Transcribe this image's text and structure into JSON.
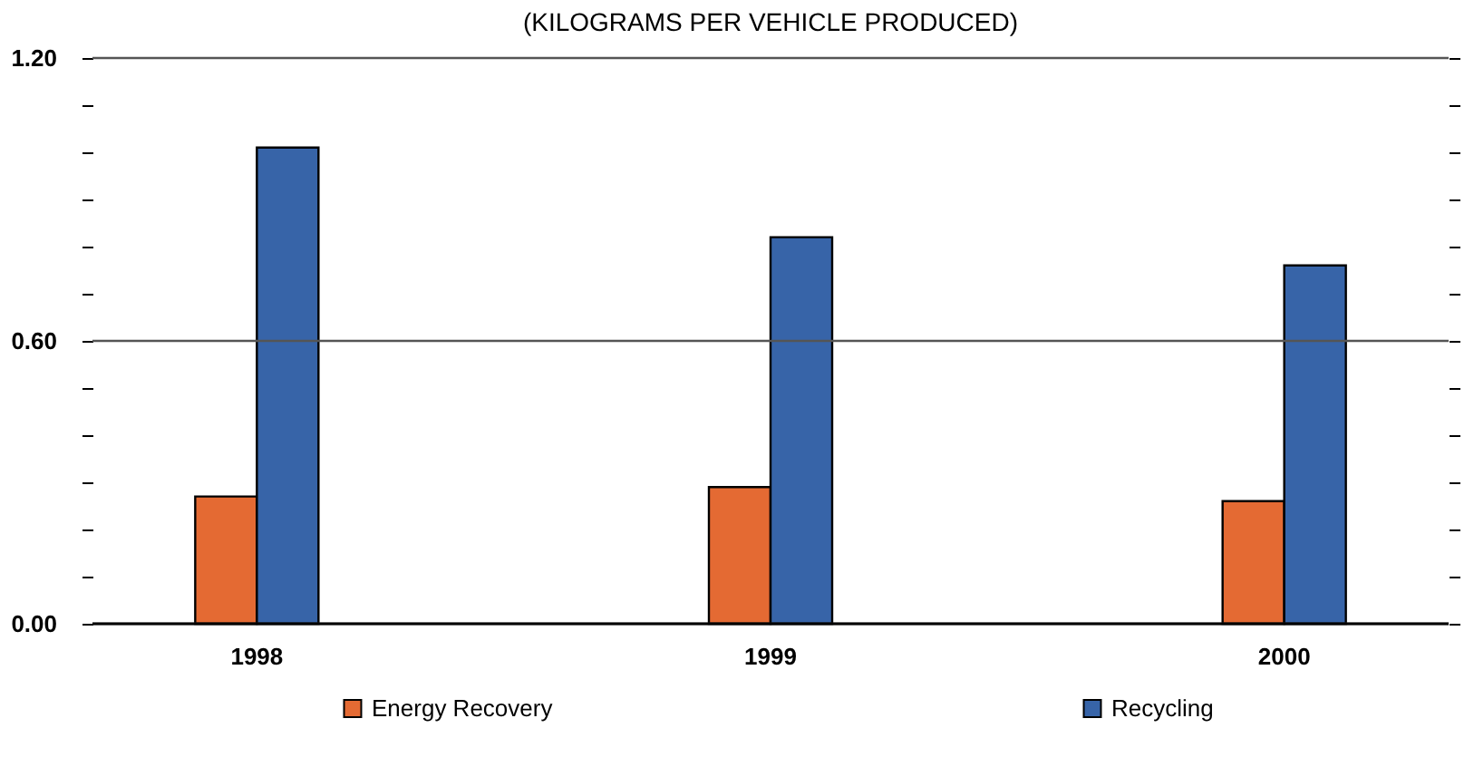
{
  "chart_data": {
    "type": "bar",
    "title": "(KILOGRAMS PER VEHICLE PRODUCED)",
    "categories": [
      "1998",
      "1999",
      "2000"
    ],
    "series": [
      {
        "name": "Energy Recovery",
        "color": "#e46a33",
        "values": [
          0.27,
          0.29,
          0.26
        ]
      },
      {
        "name": "Recycling",
        "color": "#3764a8",
        "values": [
          1.01,
          0.82,
          0.76
        ]
      }
    ],
    "ylim": [
      0,
      1.2
    ],
    "yticks": [
      {
        "value": 0,
        "label": "0.00"
      },
      {
        "value": 0.1,
        "label": null
      },
      {
        "value": 0.2,
        "label": null
      },
      {
        "value": 0.3,
        "label": null
      },
      {
        "value": 0.4,
        "label": null
      },
      {
        "value": 0.5,
        "label": null
      },
      {
        "value": 0.6,
        "label": "0.60"
      },
      {
        "value": 0.7,
        "label": null
      },
      {
        "value": 0.8,
        "label": null
      },
      {
        "value": 0.9,
        "label": null
      },
      {
        "value": 1.0,
        "label": null
      },
      {
        "value": 1.1,
        "label": null
      },
      {
        "value": 1.2,
        "label": "1.20"
      }
    ],
    "grid": "y",
    "legend": "bottom"
  }
}
